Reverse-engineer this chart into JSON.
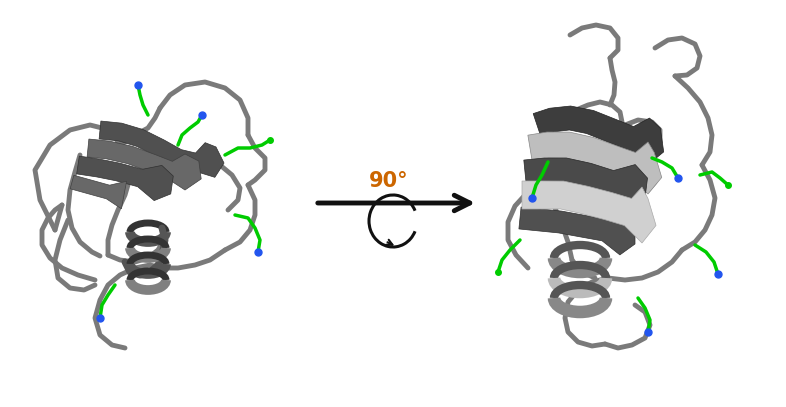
{
  "background_color": "#ffffff",
  "arrow_label": "90°",
  "arrow_color": "#111111",
  "arrow_label_color": "#cc6600",
  "label_fontsize": 15,
  "label_fontweight": "bold",
  "coil_color": "#7a7a7a",
  "coil_lw": 3.5,
  "ribbon_dark": "#4a4a4a",
  "ribbon_mid": "#6e6e6e",
  "ribbon_light": "#b0b0b0",
  "ribbon_highlight": "#d8d8d8",
  "green_color": "#00cc00",
  "blue_color": "#2255ee",
  "fig_width": 7.86,
  "fig_height": 4.07
}
